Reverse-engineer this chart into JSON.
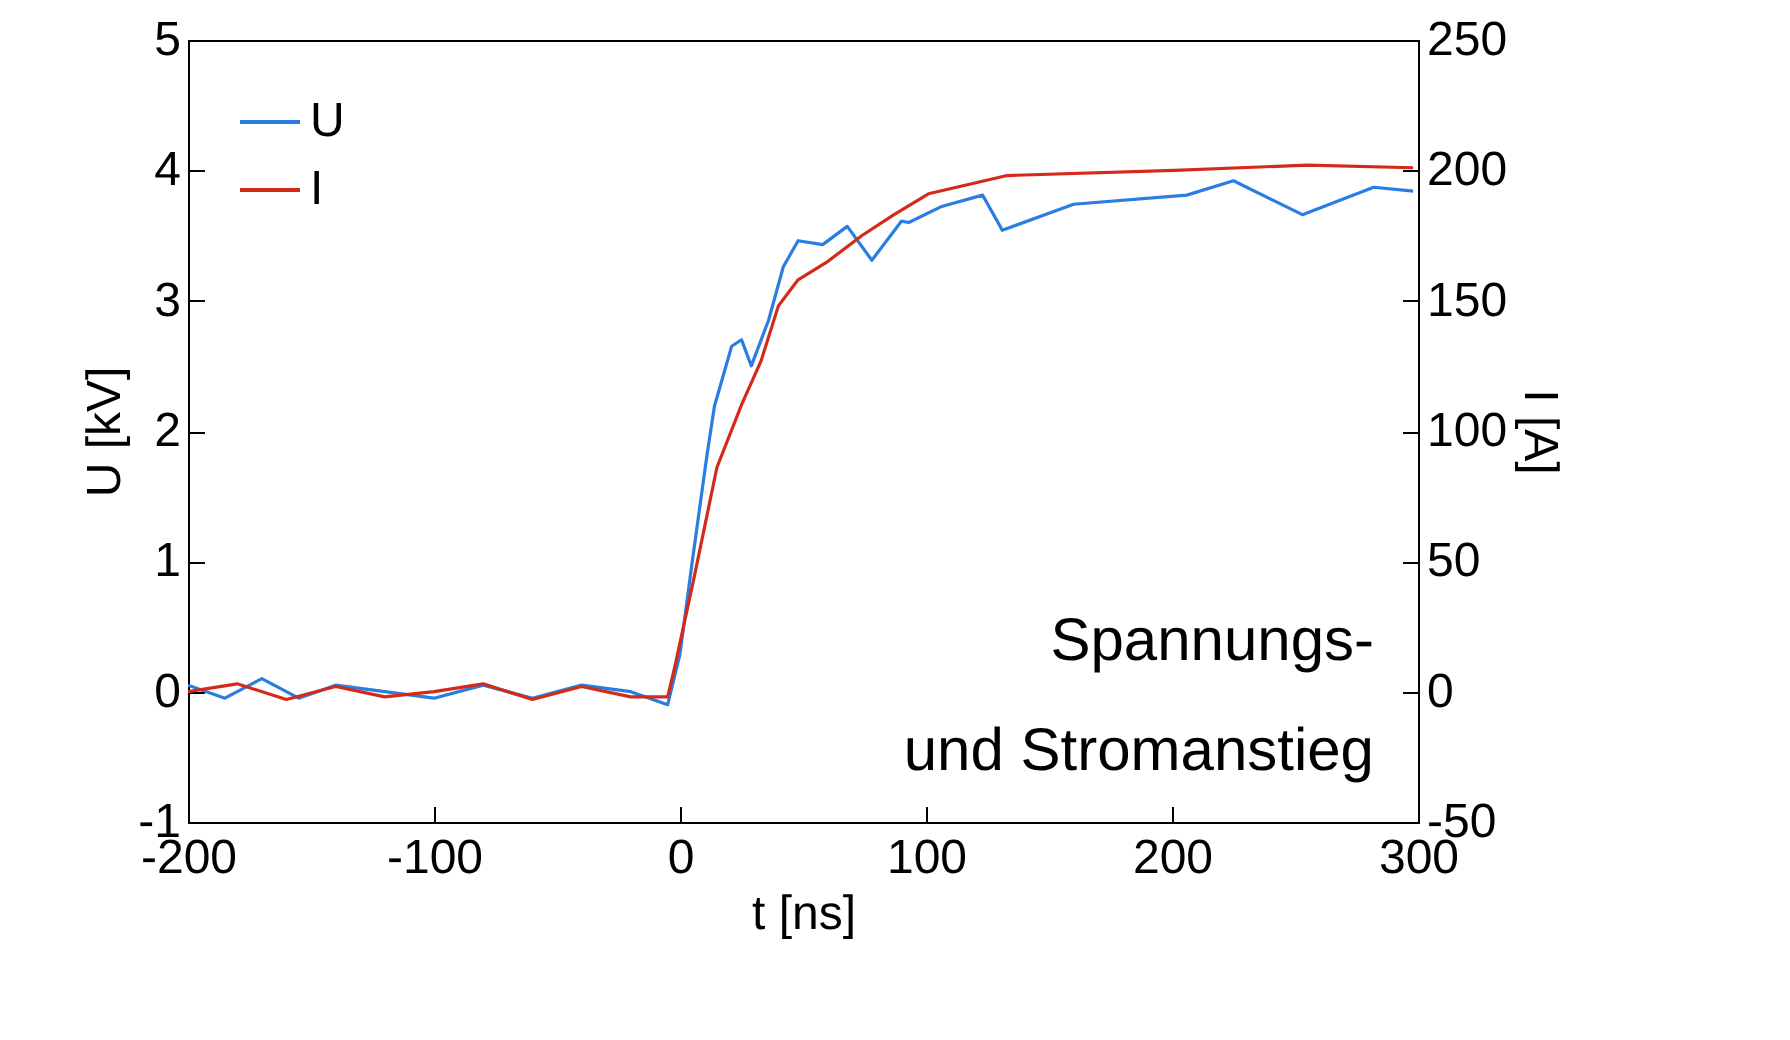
{
  "chart_data": {
    "type": "line",
    "xlabel": "t [ns]",
    "ylabel": "U [kV]",
    "y2label": "I [A]",
    "xlim": [
      -200,
      300
    ],
    "xticks": [
      -200,
      -100,
      0,
      100,
      200,
      300
    ],
    "ylim": [
      -1,
      5
    ],
    "yticks": [
      -1,
      0,
      1,
      2,
      3,
      4,
      5
    ],
    "y2lim": [
      -50,
      250
    ],
    "y2ticks": [
      -50,
      0,
      50,
      100,
      150,
      200,
      250
    ],
    "legend": "top left",
    "grid": false,
    "annotations": [
      "Spannungs-",
      "und Stromanstieg"
    ],
    "series": [
      {
        "name": "U",
        "color": "#2a7de1",
        "x": [
          -200,
          -185,
          -170,
          -155,
          -140,
          -120,
          -100,
          -80,
          -60,
          -40,
          -20,
          -5,
          0,
          5,
          11,
          14,
          21,
          25,
          29,
          36,
          42,
          48,
          58,
          68,
          78,
          90,
          93,
          106,
          123,
          129,
          131,
          160,
          206,
          225,
          253,
          282,
          298
        ],
        "values": [
          0.05,
          -0.05,
          0.1,
          -0.05,
          0.05,
          0,
          -0.05,
          0.05,
          -0.05,
          0.05,
          0,
          -0.1,
          0.29,
          1.0,
          1.82,
          2.19,
          2.65,
          2.7,
          2.5,
          2.85,
          3.26,
          3.46,
          3.43,
          3.57,
          3.31,
          3.61,
          3.6,
          3.72,
          3.81,
          3.61,
          3.54,
          3.74,
          3.81,
          3.92,
          3.66,
          3.87,
          3.84
        ]
      },
      {
        "name": "I",
        "color": "#d42a1a",
        "axis": "y2",
        "x": [
          -200,
          -180,
          -160,
          -140,
          -120,
          -100,
          -80,
          -60,
          -40,
          -20,
          -5,
          -2,
          6,
          15,
          25,
          33,
          40,
          48,
          60,
          74,
          87,
          101,
          133,
          201,
          255,
          298
        ],
        "values": [
          0,
          3,
          -3,
          2,
          -2,
          0,
          3,
          -3,
          2,
          -2,
          -2,
          10,
          45,
          86,
          110,
          127,
          148,
          158,
          165,
          175,
          183,
          191,
          198,
          200,
          202,
          201
        ]
      }
    ]
  }
}
